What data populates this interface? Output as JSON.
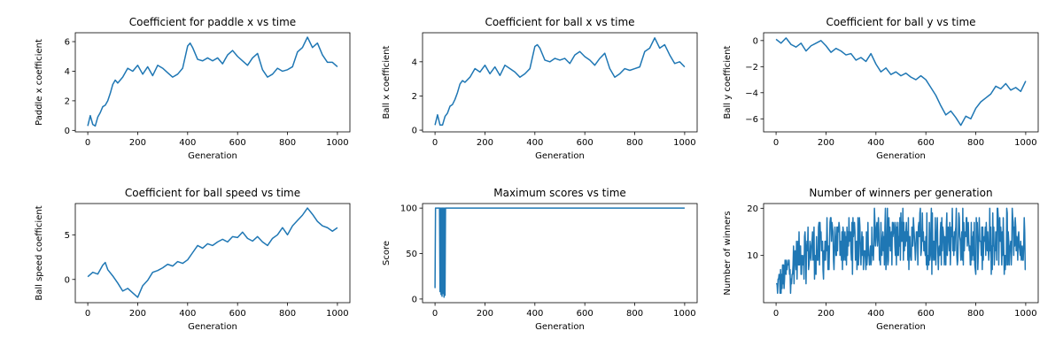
{
  "figure": {
    "line_color": "#1f77b4",
    "title_prefix": ""
  },
  "chart_data": [
    {
      "type": "line",
      "title": "Coefficient for paddle x vs time",
      "xlabel": "Generation",
      "ylabel": "Paddle x coefficient",
      "xlim": [
        -50,
        1050
      ],
      "ylim": [
        -0.1,
        6.6
      ],
      "xticks": [
        0,
        200,
        400,
        600,
        800,
        1000
      ],
      "yticks": [
        0,
        2,
        4,
        6
      ],
      "series": [
        {
          "x": [
            0,
            10,
            20,
            30,
            40,
            50,
            60,
            70,
            80,
            90,
            100,
            110,
            120,
            140,
            160,
            180,
            200,
            220,
            240,
            260,
            280,
            300,
            320,
            340,
            360,
            380,
            400,
            410,
            420,
            440,
            460,
            480,
            500,
            520,
            540,
            560,
            580,
            600,
            620,
            640,
            660,
            680,
            700,
            720,
            740,
            760,
            780,
            800,
            820,
            840,
            860,
            880,
            900,
            920,
            940,
            960,
            980,
            1000
          ],
          "y": [
            0.3,
            1.0,
            0.4,
            0.3,
            0.9,
            1.2,
            1.6,
            1.7,
            2.0,
            2.5,
            3.1,
            3.4,
            3.2,
            3.6,
            4.2,
            4.0,
            4.4,
            3.8,
            4.3,
            3.7,
            4.4,
            4.2,
            3.9,
            3.6,
            3.8,
            4.2,
            5.7,
            5.9,
            5.6,
            4.8,
            4.7,
            4.9,
            4.7,
            4.9,
            4.5,
            5.1,
            5.4,
            5.0,
            4.7,
            4.4,
            4.9,
            5.2,
            4.1,
            3.6,
            3.8,
            4.2,
            4.0,
            4.1,
            4.3,
            5.3,
            5.6,
            6.3,
            5.6,
            5.9,
            5.1,
            4.6,
            4.6,
            4.3
          ]
        }
      ]
    },
    {
      "type": "line",
      "title": "Coefficient for ball x vs time",
      "xlabel": "Generation",
      "ylabel": "Ball x coefficient",
      "xlim": [
        -50,
        1050
      ],
      "ylim": [
        -0.1,
        5.7
      ],
      "xticks": [
        0,
        200,
        400,
        600,
        800,
        1000
      ],
      "yticks": [
        0,
        2,
        4
      ],
      "series": [
        {
          "x": [
            0,
            10,
            20,
            30,
            40,
            50,
            60,
            70,
            80,
            90,
            100,
            110,
            120,
            140,
            160,
            180,
            200,
            220,
            240,
            260,
            280,
            300,
            320,
            340,
            360,
            380,
            400,
            410,
            420,
            440,
            460,
            480,
            500,
            520,
            540,
            560,
            580,
            600,
            620,
            640,
            660,
            680,
            700,
            720,
            740,
            760,
            780,
            800,
            820,
            840,
            860,
            880,
            900,
            920,
            940,
            960,
            980,
            1000
          ],
          "y": [
            0.3,
            0.9,
            0.3,
            0.3,
            0.8,
            1.0,
            1.4,
            1.5,
            1.8,
            2.2,
            2.7,
            2.9,
            2.8,
            3.1,
            3.6,
            3.4,
            3.8,
            3.3,
            3.7,
            3.2,
            3.8,
            3.6,
            3.4,
            3.1,
            3.3,
            3.6,
            4.9,
            5.0,
            4.8,
            4.1,
            4.0,
            4.2,
            4.1,
            4.2,
            3.9,
            4.4,
            4.6,
            4.3,
            4.1,
            3.8,
            4.2,
            4.5,
            3.6,
            3.1,
            3.3,
            3.6,
            3.5,
            3.6,
            3.7,
            4.6,
            4.8,
            5.4,
            4.8,
            5.0,
            4.4,
            3.9,
            4.0,
            3.7
          ]
        }
      ]
    },
    {
      "type": "line",
      "title": "Coefficient for ball y vs time",
      "xlabel": "Generation",
      "ylabel": "Ball y coefficient",
      "xlim": [
        -50,
        1050
      ],
      "ylim": [
        -7.0,
        0.6
      ],
      "xticks": [
        0,
        200,
        400,
        600,
        800,
        1000
      ],
      "yticks": [
        0,
        -2,
        -4,
        -6
      ],
      "series": [
        {
          "x": [
            0,
            20,
            40,
            60,
            80,
            100,
            120,
            140,
            160,
            180,
            200,
            220,
            240,
            260,
            280,
            300,
            320,
            340,
            360,
            380,
            400,
            420,
            440,
            460,
            480,
            500,
            520,
            540,
            560,
            580,
            600,
            620,
            640,
            660,
            680,
            700,
            720,
            740,
            760,
            780,
            800,
            820,
            840,
            860,
            880,
            900,
            920,
            940,
            960,
            980,
            1000
          ],
          "y": [
            0.1,
            -0.2,
            0.2,
            -0.3,
            -0.5,
            -0.2,
            -0.8,
            -0.4,
            -0.2,
            0.0,
            -0.4,
            -0.9,
            -0.6,
            -0.8,
            -1.1,
            -1.0,
            -1.5,
            -1.3,
            -1.6,
            -1.0,
            -1.8,
            -2.4,
            -2.1,
            -2.6,
            -2.4,
            -2.7,
            -2.5,
            -2.8,
            -3.0,
            -2.7,
            -3.0,
            -3.6,
            -4.2,
            -5.0,
            -5.7,
            -5.4,
            -5.9,
            -6.5,
            -5.8,
            -6.0,
            -5.2,
            -4.7,
            -4.4,
            -4.1,
            -3.5,
            -3.7,
            -3.3,
            -3.8,
            -3.6,
            -3.9,
            -3.1
          ]
        }
      ]
    },
    {
      "type": "line",
      "title": "Coefficient for ball speed vs time",
      "xlabel": "Generation",
      "ylabel": "Ball speed coefficient",
      "xlim": [
        -50,
        1050
      ],
      "ylim": [
        -2.6,
        8.5
      ],
      "xticks": [
        0,
        200,
        400,
        600,
        800,
        1000
      ],
      "yticks": [
        0,
        5
      ],
      "series": [
        {
          "x": [
            0,
            20,
            40,
            60,
            70,
            80,
            100,
            120,
            140,
            160,
            180,
            200,
            220,
            240,
            260,
            280,
            300,
            320,
            340,
            360,
            380,
            400,
            420,
            440,
            460,
            480,
            500,
            520,
            540,
            560,
            580,
            600,
            620,
            640,
            660,
            680,
            700,
            720,
            740,
            760,
            780,
            800,
            820,
            840,
            860,
            880,
            900,
            920,
            940,
            960,
            980,
            1000
          ],
          "y": [
            0.3,
            0.8,
            0.6,
            1.6,
            1.9,
            1.1,
            0.4,
            -0.4,
            -1.3,
            -1.0,
            -1.5,
            -2.0,
            -0.7,
            -0.1,
            0.8,
            1.0,
            1.3,
            1.7,
            1.5,
            2.0,
            1.8,
            2.2,
            3.0,
            3.8,
            3.5,
            4.0,
            3.8,
            4.2,
            4.5,
            4.2,
            4.8,
            4.7,
            5.3,
            4.6,
            4.3,
            4.8,
            4.2,
            3.8,
            4.6,
            5.0,
            5.8,
            5.0,
            6.0,
            6.6,
            7.2,
            8.0,
            7.3,
            6.5,
            6.0,
            5.8,
            5.4,
            5.8
          ]
        }
      ]
    },
    {
      "type": "line",
      "title": "Maximum scores vs time",
      "xlabel": "Generation",
      "ylabel": "Score",
      "xlim": [
        -50,
        1050
      ],
      "ylim": [
        -4,
        105
      ],
      "xticks": [
        0,
        200,
        400,
        600,
        800,
        1000
      ],
      "yticks": [
        0,
        50,
        100
      ],
      "series": [
        {
          "x": [
            0,
            2,
            10,
            18,
            20,
            22,
            24,
            26,
            28,
            30,
            32,
            34,
            36,
            38,
            40,
            42,
            44,
            1000
          ],
          "y": [
            12,
            100,
            100,
            100,
            8,
            100,
            5,
            100,
            3,
            100,
            6,
            100,
            2,
            100,
            4,
            100,
            100,
            100
          ]
        }
      ]
    },
    {
      "type": "line",
      "title": "Number of winners per generation",
      "xlabel": "Generation",
      "ylabel": "Number of winners",
      "xlim": [
        -50,
        1050
      ],
      "ylim": [
        0.0,
        21.0
      ],
      "xticks": [
        0,
        200,
        400,
        600,
        800,
        1000
      ],
      "yticks": [
        10,
        20
      ],
      "series": [
        {
          "generator": "winners"
        }
      ]
    }
  ]
}
